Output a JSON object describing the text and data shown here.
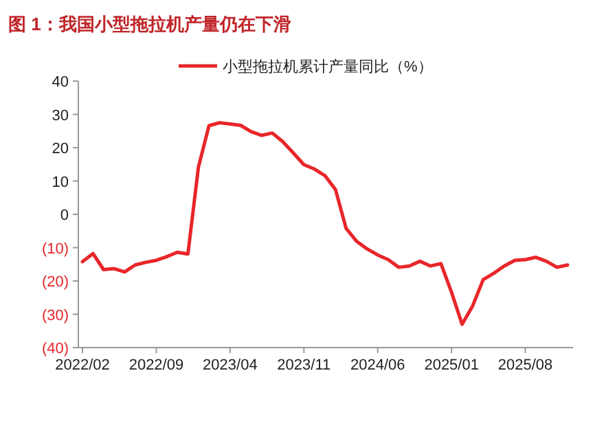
{
  "chart_data": {
    "type": "line",
    "title": "图 1：我国小型拖拉机产量仍在下滑",
    "categories": [
      "2022/02",
      null,
      null,
      null,
      null,
      null,
      null,
      "2022/09",
      null,
      null,
      null,
      null,
      null,
      null,
      "2023/04",
      null,
      null,
      null,
      null,
      null,
      null,
      "2023/11",
      null,
      null,
      null,
      null,
      null,
      null,
      "2024/06",
      null,
      null,
      null,
      null,
      null,
      null,
      "2025/01",
      null,
      null,
      null,
      null,
      null,
      null,
      "2025/08",
      null,
      null,
      null,
      null
    ],
    "series": [
      {
        "name": "小型拖拉机累计产量同比（%）",
        "color": "#e8262a",
        "values": [
          -14.2,
          -11.8,
          -16.6,
          -16.3,
          -17.3,
          -15.2,
          -14.4,
          -13.8,
          -12.7,
          -11.4,
          -11.9,
          14.2,
          26.6,
          27.5,
          27.1,
          26.7,
          24.8,
          23.7,
          24.4,
          21.8,
          18.4,
          14.9,
          13.6,
          11.6,
          7.4,
          -4.2,
          -8.1,
          -10.4,
          -12.2,
          -13.6,
          -15.9,
          -15.5,
          -14.1,
          -15.5,
          -14.8,
          -23.4,
          -33.0,
          -27.5,
          -19.6,
          -17.7,
          -15.5,
          -13.8,
          -13.6,
          -12.9,
          -14.1,
          -15.9,
          -15.2
        ]
      }
    ],
    "ylim": [
      -40,
      40
    ],
    "yticks": [
      {
        "value": -40,
        "label": "(40)"
      },
      {
        "value": -30,
        "label": "(30)"
      },
      {
        "value": -20,
        "label": "(20)"
      },
      {
        "value": -10,
        "label": "(10)"
      },
      0,
      10,
      20,
      30,
      40
    ],
    "legend": "top",
    "grid": false,
    "marker": "none",
    "line_style": "solid"
  }
}
